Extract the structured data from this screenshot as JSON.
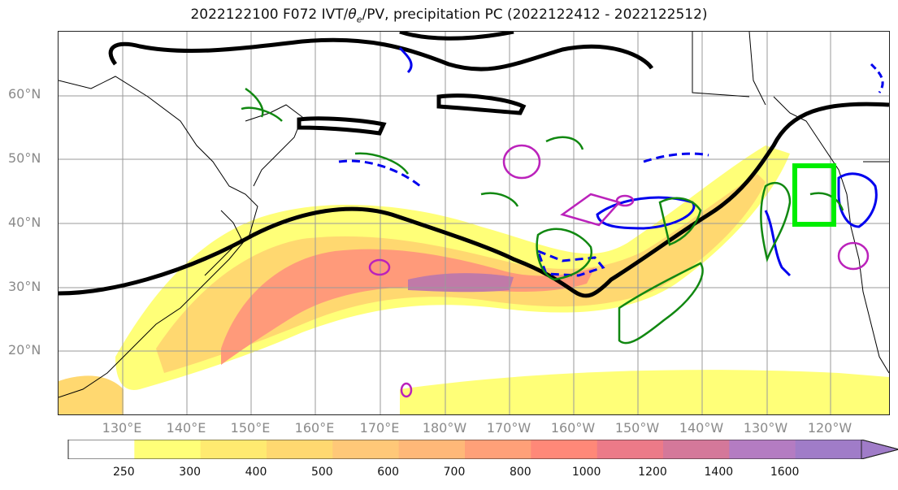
{
  "figure": {
    "title": "2022122100 F072 IVT/θe/PV, precipitation PC (2022122412 - 2022122512)"
  },
  "map": {
    "lat_labels": [
      "60°N",
      "50°N",
      "40°N",
      "30°N",
      "20°N"
    ],
    "lon_labels": [
      "130°E",
      "140°E",
      "150°E",
      "160°E",
      "170°E",
      "180°W",
      "170°W",
      "160°W",
      "150°W",
      "140°W",
      "130°W",
      "120°W"
    ],
    "colors": {
      "theta_e_contour": "#000000",
      "pv_positive": "#0000ee",
      "pv_negative": "#0000ee",
      "precip_pc": "#118811",
      "pv_magenta": "#bb22bb",
      "target_box": "#00ee00",
      "coastline": "#000000",
      "gridline": "#9a9a9a"
    }
  },
  "colorbar": {
    "ticks": [
      "250",
      "300",
      "400",
      "500",
      "600",
      "700",
      "800",
      "1000",
      "1200",
      "1400",
      "1600"
    ],
    "colors": [
      "#ffffff",
      "#ffff78",
      "#ffea70",
      "#ffd870",
      "#ffc878",
      "#ffb878",
      "#ffa078",
      "#ff8878",
      "#ec7a88",
      "#d4789a",
      "#b47cc2",
      "#a07cc8"
    ]
  }
}
